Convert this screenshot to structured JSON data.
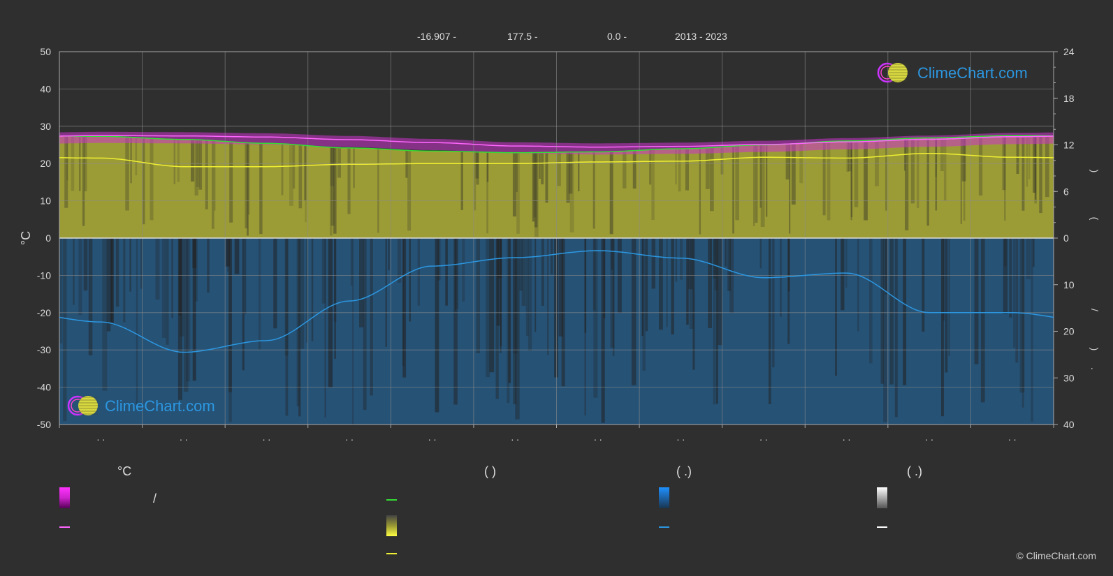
{
  "header": {
    "lat": "-16.907 -",
    "lon": "177.5 -",
    "elev": "0.0 -",
    "years": "2013 - 2023"
  },
  "logo_text": "ClimeChart.com",
  "copyright": "© ClimeChart.com",
  "legend": {
    "col1_head": "°C",
    "col1_slash": "/",
    "col2_head": "(          )",
    "col3_head": "(   .)",
    "col4_head": "(   .)"
  },
  "colors": {
    "background": "#2f2f2f",
    "temp_band": "#cc33cc",
    "temp_mean_line": "#ff66ff",
    "daylight_line": "#33dd33",
    "sunshine_fill": "#b8b838",
    "sunshine_line": "#eeee33",
    "precip_fill": "#1f6fb0",
    "precip_line": "#2c97e0",
    "grid": "#8a8a8a"
  },
  "chart_data": {
    "type": "area",
    "xlabel": "",
    "x_tick_labels": [
      ". .",
      ". .",
      ". .",
      ". .",
      ". .",
      ". .",
      ". .",
      ". .",
      ". .",
      ". .",
      ". .",
      ". ."
    ],
    "y_left": {
      "label": "°C",
      "range": [
        -50,
        50
      ],
      "ticks": [
        50,
        40,
        30,
        20,
        10,
        0,
        -10,
        -20,
        -30,
        -40,
        -50
      ]
    },
    "y_right_top": {
      "range": [
        0,
        24
      ],
      "ticks": [
        24,
        18,
        12,
        6,
        0
      ],
      "label_chars": [
        ")",
        "("
      ]
    },
    "y_right_bottom": {
      "range": [
        0,
        40
      ],
      "ticks": [
        0,
        10,
        20,
        30,
        40
      ],
      "label_chars": [
        "/",
        ")",
        "."
      ]
    },
    "months": [
      1,
      2,
      3,
      4,
      5,
      6,
      7,
      8,
      9,
      10,
      11,
      12
    ],
    "series": [
      {
        "key": "temp_mean",
        "axis": "left",
        "values": [
          27.5,
          27.4,
          27.1,
          26.4,
          25.6,
          24.7,
          24.4,
          24.6,
          25.1,
          25.8,
          26.5,
          27.2
        ]
      },
      {
        "key": "temp_band_max",
        "axis": "left",
        "values": [
          28.5,
          28.4,
          28.1,
          27.4,
          26.6,
          25.7,
          25.4,
          25.6,
          26.1,
          26.8,
          27.5,
          28.2
        ]
      },
      {
        "key": "temp_band_min",
        "axis": "left",
        "values": [
          25.5,
          25.4,
          25.1,
          24.4,
          23.6,
          22.7,
          22.4,
          22.6,
          23.1,
          23.8,
          24.5,
          25.2
        ]
      },
      {
        "key": "daylight_hours",
        "axis": "right_top",
        "values": [
          13.1,
          12.7,
          12.2,
          11.6,
          11.2,
          11.0,
          11.1,
          11.5,
          12.0,
          12.5,
          12.9,
          13.2
        ]
      },
      {
        "key": "sunshine_hours",
        "axis": "right_top",
        "values": [
          10.3,
          9.2,
          9.2,
          9.5,
          9.6,
          9.6,
          9.8,
          9.9,
          10.4,
          10.3,
          10.9,
          10.4
        ]
      },
      {
        "key": "precip_mm_per_day",
        "axis": "right_bottom",
        "values": [
          18.0,
          24.5,
          22.0,
          13.5,
          6.0,
          4.2,
          2.7,
          4.3,
          8.5,
          7.5,
          16.0,
          16.0
        ]
      }
    ]
  }
}
